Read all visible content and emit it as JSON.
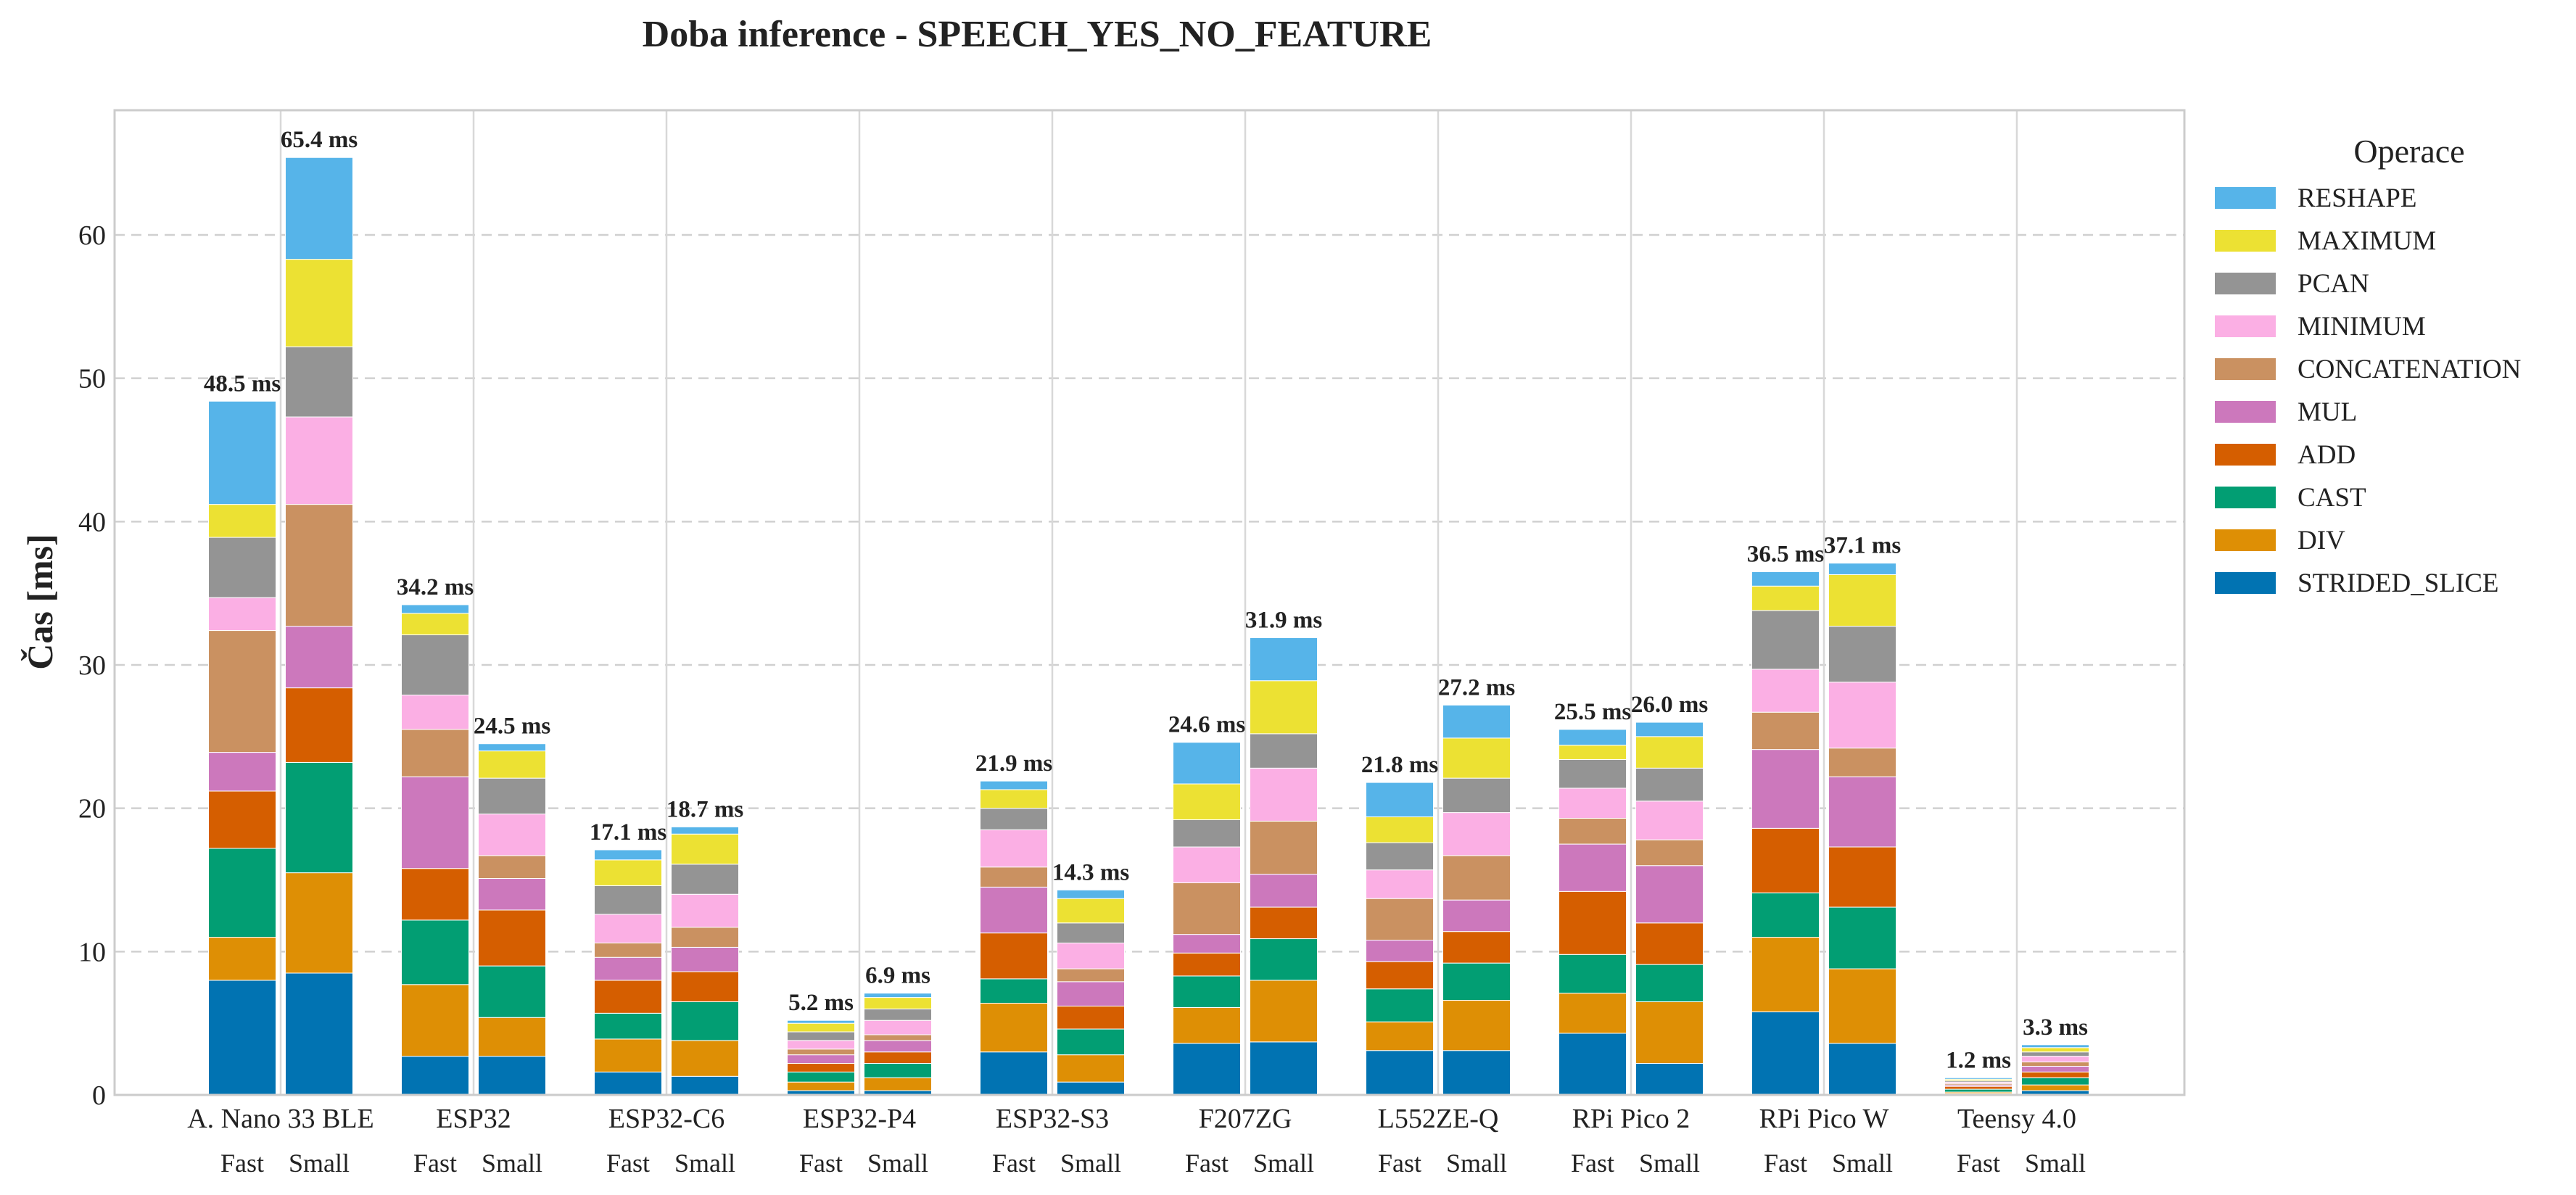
{
  "chart_data": {
    "type": "bar",
    "stacked": true,
    "title": "Doba inference - SPEECH_YES_NO_FEATURE",
    "ylabel": "Čas [ms]",
    "xlabel": "",
    "ylim": [
      0,
      68.7
    ],
    "yticks": [
      0,
      10,
      20,
      30,
      40,
      50,
      60
    ],
    "grid": "y-dashed",
    "legend": {
      "title": "Operace",
      "placement": "right",
      "order": [
        "RESHAPE",
        "MAXIMUM",
        "PCAN",
        "MINIMUM",
        "CONCATENATION",
        "MUL",
        "ADD",
        "CAST",
        "DIV",
        "STRIDED_SLICE"
      ]
    },
    "series_colors": {
      "STRIDED_SLICE": "#0173b2",
      "DIV": "#de8f05",
      "CAST": "#029e73",
      "ADD": "#d55e00",
      "MUL": "#cc78bc",
      "CONCATENATION": "#ca9161",
      "MINIMUM": "#fbafe4",
      "PCAN": "#949494",
      "MAXIMUM": "#ece133",
      "RESHAPE": "#56b4e9"
    },
    "stack_order": [
      "STRIDED_SLICE",
      "DIV",
      "CAST",
      "ADD",
      "MUL",
      "CONCATENATION",
      "MINIMUM",
      "PCAN",
      "MAXIMUM",
      "RESHAPE"
    ],
    "variants": [
      "Fast",
      "Small"
    ],
    "categories": [
      "A. Nano 33 BLE",
      "ESP32",
      "ESP32-C6",
      "ESP32-P4",
      "ESP32-S3",
      "F207ZG",
      "L552ZE-Q",
      "RPi Pico 2",
      "RPi Pico W",
      "Teensy 4.0"
    ],
    "bars": [
      {
        "category": "A. Nano 33 BLE",
        "variant": "Fast",
        "total_label": "48.5 ms",
        "segments": [
          8.0,
          3.0,
          6.2,
          4.0,
          2.7,
          8.5,
          2.3,
          4.2,
          2.3,
          7.2
        ]
      },
      {
        "category": "A. Nano 33 BLE",
        "variant": "Small",
        "total_label": "65.4 ms",
        "segments": [
          8.5,
          7.0,
          7.7,
          5.2,
          4.3,
          8.5,
          6.1,
          4.9,
          6.1,
          7.1
        ]
      },
      {
        "category": "ESP32",
        "variant": "Fast",
        "total_label": "34.2 ms",
        "segments": [
          2.7,
          5.0,
          4.5,
          3.6,
          6.4,
          3.3,
          2.4,
          4.2,
          1.5,
          0.6
        ]
      },
      {
        "category": "ESP32",
        "variant": "Small",
        "total_label": "24.5 ms",
        "segments": [
          2.7,
          2.7,
          3.6,
          3.9,
          2.2,
          1.6,
          2.9,
          2.5,
          1.9,
          0.5
        ]
      },
      {
        "category": "ESP32-C6",
        "variant": "Fast",
        "total_label": "17.1 ms",
        "segments": [
          1.6,
          2.3,
          1.8,
          2.3,
          1.6,
          1.0,
          2.0,
          2.0,
          1.8,
          0.7
        ]
      },
      {
        "category": "ESP32-C6",
        "variant": "Small",
        "total_label": "18.7 ms",
        "segments": [
          1.3,
          2.5,
          2.7,
          2.1,
          1.7,
          1.4,
          2.3,
          2.1,
          2.1,
          0.5
        ]
      },
      {
        "category": "ESP32-P4",
        "variant": "Fast",
        "total_label": "5.2 ms",
        "segments": [
          0.3,
          0.6,
          0.7,
          0.6,
          0.6,
          0.4,
          0.6,
          0.6,
          0.6,
          0.2
        ]
      },
      {
        "category": "ESP32-P4",
        "variant": "Small",
        "total_label": "6.9 ms",
        "segments": [
          0.3,
          0.9,
          1.0,
          0.8,
          0.8,
          0.4,
          1.0,
          0.8,
          0.8,
          0.3
        ]
      },
      {
        "category": "ESP32-S3",
        "variant": "Fast",
        "total_label": "21.9 ms",
        "segments": [
          3.0,
          3.4,
          1.7,
          3.2,
          3.2,
          1.4,
          2.6,
          1.5,
          1.3,
          0.6
        ]
      },
      {
        "category": "ESP32-S3",
        "variant": "Small",
        "total_label": "14.3 ms",
        "segments": [
          0.9,
          1.9,
          1.8,
          1.6,
          1.7,
          0.9,
          1.8,
          1.4,
          1.7,
          0.6
        ]
      },
      {
        "category": "F207ZG",
        "variant": "Fast",
        "total_label": "24.6 ms",
        "segments": [
          3.6,
          2.5,
          2.2,
          1.6,
          1.3,
          3.6,
          2.5,
          1.9,
          2.5,
          2.9
        ]
      },
      {
        "category": "F207ZG",
        "variant": "Small",
        "total_label": "31.9 ms",
        "segments": [
          3.7,
          4.3,
          2.9,
          2.2,
          2.3,
          3.7,
          3.7,
          2.4,
          3.7,
          3.0
        ]
      },
      {
        "category": "L552ZE-Q",
        "variant": "Fast",
        "total_label": "21.8 ms",
        "segments": [
          3.1,
          2.0,
          2.3,
          1.9,
          1.5,
          2.9,
          2.0,
          1.9,
          1.8,
          2.4
        ]
      },
      {
        "category": "L552ZE-Q",
        "variant": "Small",
        "total_label": "27.2 ms",
        "segments": [
          3.1,
          3.5,
          2.6,
          2.2,
          2.2,
          3.1,
          3.0,
          2.4,
          2.8,
          2.3
        ]
      },
      {
        "category": "RPi Pico 2",
        "variant": "Fast",
        "total_label": "25.5 ms",
        "segments": [
          4.3,
          2.8,
          2.7,
          4.4,
          3.3,
          1.8,
          2.1,
          2.0,
          1.0,
          1.1
        ]
      },
      {
        "category": "RPi Pico 2",
        "variant": "Small",
        "total_label": "26.0 ms",
        "segments": [
          2.2,
          4.3,
          2.6,
          2.9,
          4.0,
          1.8,
          2.7,
          2.3,
          2.2,
          1.0
        ]
      },
      {
        "category": "RPi Pico W",
        "variant": "Fast",
        "total_label": "36.5 ms",
        "segments": [
          5.8,
          5.2,
          3.1,
          4.5,
          5.5,
          2.6,
          3.0,
          4.1,
          1.7,
          1.0
        ]
      },
      {
        "category": "RPi Pico W",
        "variant": "Small",
        "total_label": "37.1 ms",
        "segments": [
          3.6,
          5.2,
          4.3,
          4.2,
          4.9,
          2.0,
          4.6,
          3.9,
          3.6,
          0.8
        ]
      },
      {
        "category": "Teensy 4.0",
        "variant": "Fast",
        "total_label": "1.2 ms",
        "segments": [
          0.1,
          0.1,
          0.2,
          0.2,
          0.1,
          0.1,
          0.1,
          0.1,
          0.1,
          0.1
        ]
      },
      {
        "category": "Teensy 4.0",
        "variant": "Small",
        "total_label": "3.3 ms",
        "segments": [
          0.3,
          0.4,
          0.5,
          0.4,
          0.4,
          0.3,
          0.4,
          0.3,
          0.3,
          0.2
        ]
      }
    ]
  }
}
